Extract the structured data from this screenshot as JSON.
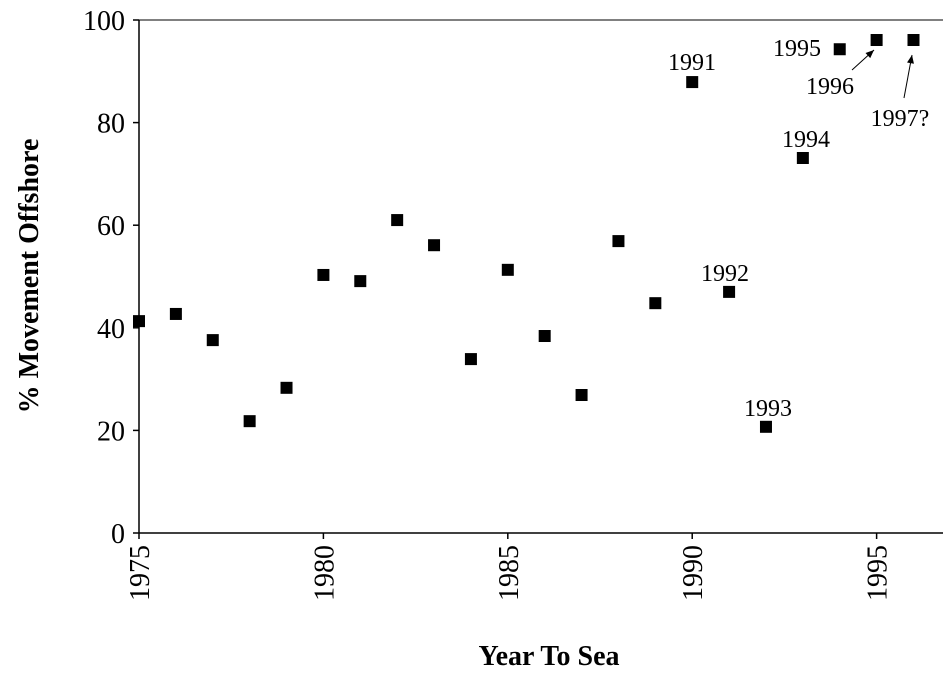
{
  "chart_data": {
    "type": "scatter",
    "xlabel": "Year To Sea",
    "ylabel": "% Movement Offshore",
    "x": [
      1975,
      1976,
      1977,
      1978,
      1979,
      1980,
      1981,
      1982,
      1983,
      1984,
      1985,
      1986,
      1987,
      1988,
      1989,
      1990,
      1991,
      1992,
      1993,
      1994,
      1995,
      1996
    ],
    "values": [
      41.3,
      42.7,
      37.6,
      21.8,
      28.3,
      50.3,
      49.1,
      61,
      56.1,
      33.9,
      51.3,
      38.4,
      26.9,
      56.9,
      44.8,
      87.9,
      47,
      20.7,
      73.1,
      94.3,
      96.1,
      96.1
    ],
    "color": "#000000",
    "xlim": [
      1975,
      1996.8
    ],
    "ylim": [
      0,
      100
    ],
    "xticks": [
      1975,
      1980,
      1985,
      1990,
      1995
    ],
    "yticks": [
      0,
      20,
      40,
      60,
      80,
      100
    ],
    "grid": false,
    "annotations": [
      "1991",
      "1992",
      "1993",
      "1994",
      "1995",
      "1996",
      "1997?"
    ]
  }
}
